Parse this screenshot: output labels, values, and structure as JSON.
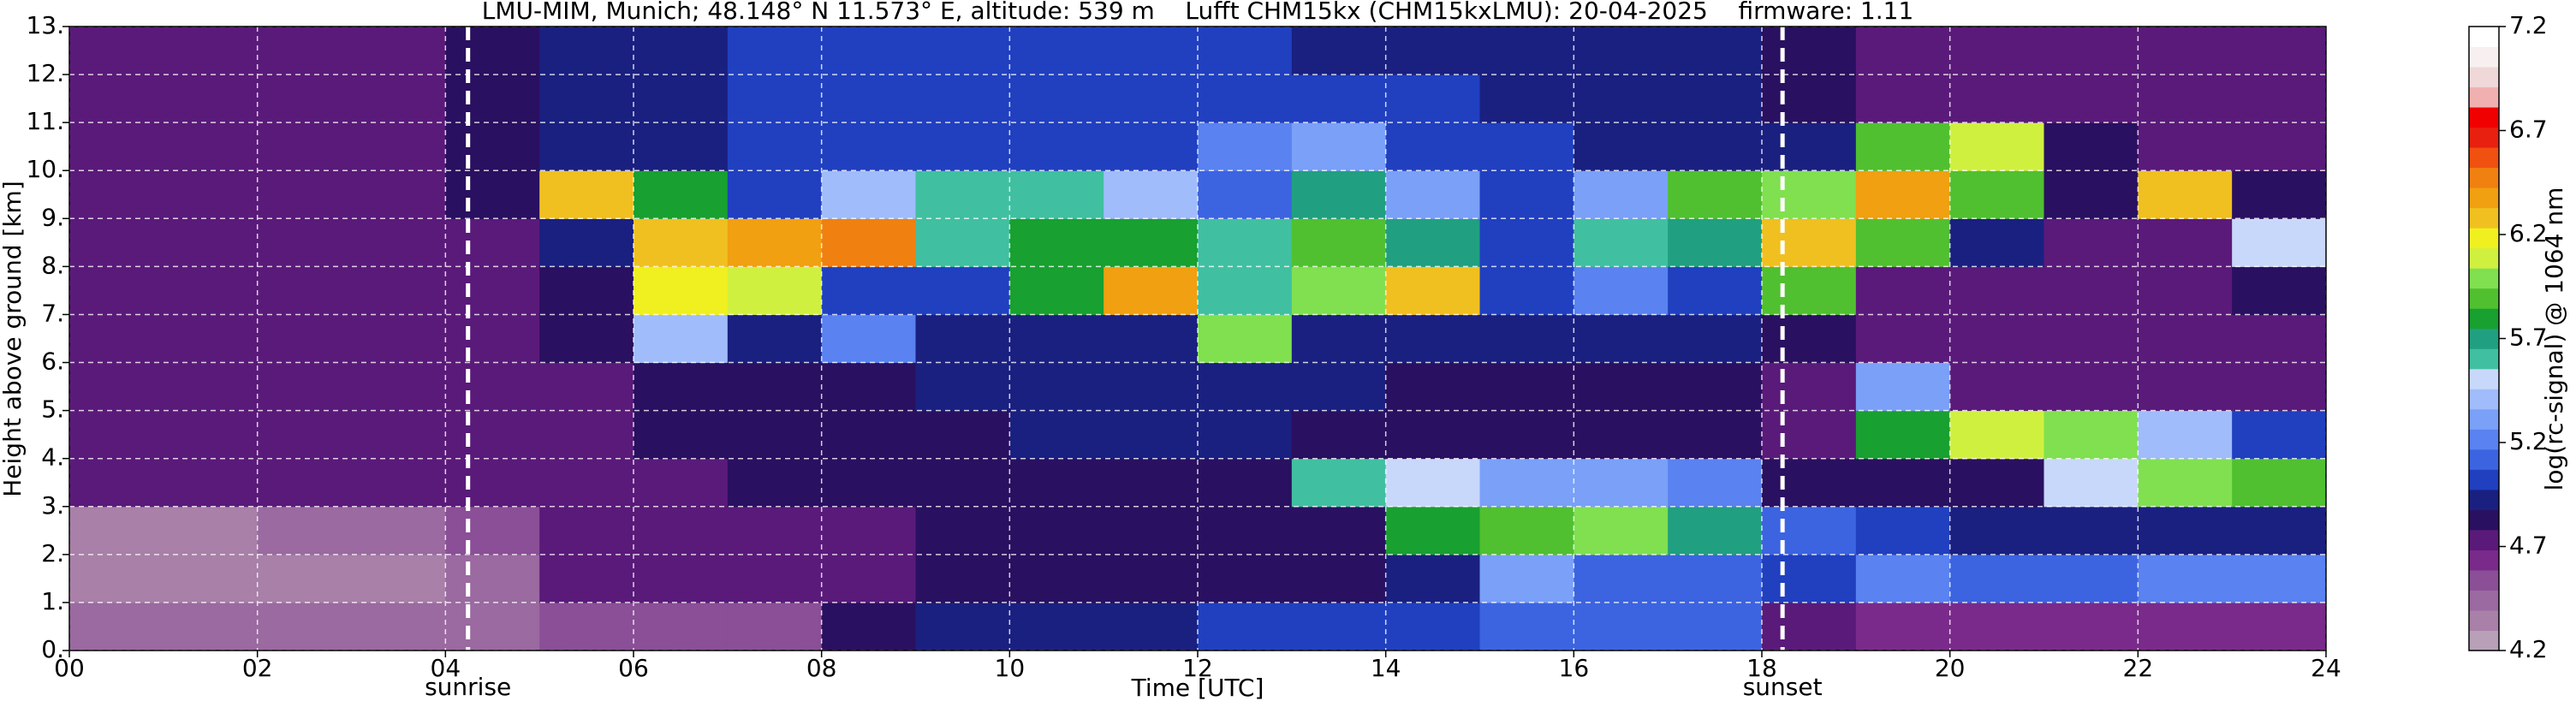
{
  "chart_data": {
    "type": "heatmap",
    "title": "LMU-MIM, Munich; 48.148° N 11.573° E, altitude: 539 m    Lufft CHM15kx (CHM15kxLMU): 20-04-2025    firmware: 1.11",
    "xlabel": "Time [UTC]",
    "ylabel": "Height above ground [km]",
    "colorbar_label": "log(rc-signal) @ 1064 nm",
    "xlim": [
      0,
      24
    ],
    "ylim": [
      0,
      13
    ],
    "zlim": [
      4.2,
      7.2
    ],
    "grid": true,
    "xticks": [
      {
        "value": 0,
        "label": "00"
      },
      {
        "value": 2,
        "label": "02"
      },
      {
        "value": 4,
        "label": "04"
      },
      {
        "value": 6,
        "label": "06"
      },
      {
        "value": 8,
        "label": "08"
      },
      10,
      12,
      14,
      16,
      18,
      20,
      22,
      24
    ],
    "yticks": [
      {
        "value": 0,
        "label": "0."
      },
      {
        "value": 1,
        "label": "1."
      },
      {
        "value": 2,
        "label": "2."
      },
      {
        "value": 3,
        "label": "3."
      },
      {
        "value": 4,
        "label": "4."
      },
      {
        "value": 5,
        "label": "5."
      },
      {
        "value": 6,
        "label": "6."
      },
      {
        "value": 7,
        "label": "7."
      },
      {
        "value": 8,
        "label": "8."
      },
      {
        "value": 9,
        "label": "9."
      },
      {
        "value": 10,
        "label": "10."
      },
      {
        "value": 11,
        "label": "11."
      },
      {
        "value": 12,
        "label": "12."
      },
      {
        "value": 13,
        "label": "13."
      }
    ],
    "zticks": [
      4.2,
      4.7,
      5.2,
      5.7,
      6.2,
      6.7,
      7.2
    ],
    "annotations": [
      {
        "label": "sunrise",
        "x": 4.24
      },
      {
        "label": "sunset",
        "x": 18.22
      }
    ],
    "colors": [
      "#b8a0b8",
      "#a880a8",
      "#9a6aa0",
      "#8a4f96",
      "#7a2a8a",
      "#5a1a7a",
      "#2a1060",
      "#1a2080",
      "#2040c0",
      "#3c64e0",
      "#5a82f0",
      "#7aa0f8",
      "#a0bcfa",
      "#c8d8fa",
      "#40c0a0",
      "#20a080",
      "#18a030",
      "#50c030",
      "#80e050",
      "#d0f040",
      "#f0f020",
      "#f0c020",
      "#f0a010",
      "#f08010",
      "#f05010",
      "#e82010",
      "#f00000",
      "#f0b0b0",
      "#f0d8d8",
      "#f8f0f0",
      "#ffffff"
    ],
    "xbins": [
      0,
      1,
      2,
      3,
      4,
      5,
      6,
      7,
      8,
      9,
      10,
      11,
      12,
      13,
      14,
      15,
      16,
      17,
      18,
      19,
      20,
      21,
      22,
      23,
      24
    ],
    "ybins": [
      0,
      1,
      2,
      3,
      4,
      5,
      6,
      7,
      8,
      9,
      10,
      11,
      12,
      13
    ],
    "z": [
      [
        4.4,
        4.4,
        4.4,
        4.4,
        4.45,
        4.5,
        4.5,
        4.5,
        4.8,
        4.9,
        4.9,
        4.9,
        5.0,
        5.0,
        5.0,
        5.1,
        5.1,
        5.1,
        4.7,
        4.6,
        4.6,
        4.6,
        4.6,
        4.6
      ],
      [
        4.35,
        4.35,
        4.35,
        4.35,
        4.4,
        4.7,
        4.7,
        4.7,
        4.75,
        4.8,
        4.8,
        4.8,
        4.8,
        4.85,
        4.9,
        5.3,
        5.1,
        5.1,
        5.0,
        5.2,
        5.1,
        5.1,
        5.2,
        5.2
      ],
      [
        4.35,
        4.35,
        4.4,
        4.4,
        4.5,
        4.7,
        4.7,
        4.75,
        4.75,
        4.8,
        4.8,
        4.8,
        4.8,
        4.85,
        5.8,
        5.9,
        6.0,
        5.7,
        5.1,
        5.0,
        4.95,
        4.95,
        4.95,
        4.95
      ],
      [
        4.7,
        4.7,
        4.7,
        4.7,
        4.7,
        4.75,
        4.75,
        4.8,
        4.8,
        4.85,
        4.85,
        4.85,
        4.85,
        5.6,
        5.5,
        5.3,
        5.3,
        5.2,
        4.8,
        4.8,
        4.8,
        5.5,
        6.0,
        5.9
      ],
      [
        4.7,
        4.7,
        4.7,
        4.7,
        4.7,
        4.75,
        4.8,
        4.8,
        4.85,
        4.85,
        4.9,
        4.9,
        4.9,
        4.85,
        4.85,
        4.8,
        4.8,
        4.8,
        4.75,
        5.8,
        6.1,
        6.0,
        5.4,
        5.0
      ],
      [
        4.7,
        4.7,
        4.7,
        4.7,
        4.7,
        4.75,
        4.8,
        4.85,
        4.85,
        4.9,
        4.9,
        4.9,
        4.9,
        4.9,
        4.85,
        4.85,
        4.85,
        4.85,
        4.75,
        5.3,
        4.75,
        4.7,
        4.7,
        4.7
      ],
      [
        4.7,
        4.7,
        4.7,
        4.7,
        4.7,
        4.8,
        5.4,
        4.9,
        5.2,
        4.95,
        4.95,
        4.95,
        6.0,
        4.95,
        4.9,
        4.9,
        4.9,
        4.9,
        4.8,
        4.7,
        4.7,
        4.7,
        4.7,
        4.7
      ],
      [
        4.7,
        4.7,
        4.7,
        4.7,
        4.75,
        4.85,
        6.2,
        6.1,
        5.0,
        5.0,
        5.8,
        6.4,
        5.6,
        6.0,
        6.3,
        5.0,
        5.2,
        5.0,
        5.9,
        4.75,
        4.7,
        4.7,
        4.7,
        4.8
      ],
      [
        4.7,
        4.7,
        4.7,
        4.7,
        4.75,
        4.9,
        6.3,
        6.4,
        6.5,
        5.6,
        5.8,
        5.8,
        5.6,
        5.9,
        5.7,
        5.0,
        5.6,
        5.7,
        6.3,
        5.9,
        4.9,
        4.75,
        4.75,
        5.5
      ],
      [
        4.7,
        4.7,
        4.7,
        4.7,
        4.8,
        6.3,
        5.8,
        5.0,
        5.4,
        5.6,
        5.6,
        5.4,
        5.1,
        5.7,
        5.3,
        5.0,
        5.3,
        5.9,
        6.0,
        6.4,
        5.9,
        4.8,
        6.3,
        4.8
      ],
      [
        4.7,
        4.7,
        4.7,
        4.7,
        4.8,
        4.9,
        4.95,
        5.0,
        5.0,
        5.0,
        5.0,
        5.0,
        5.2,
        5.3,
        5.0,
        5.0,
        4.95,
        4.9,
        4.9,
        5.9,
        6.1,
        4.8,
        4.75,
        4.7
      ],
      [
        4.7,
        4.7,
        4.7,
        4.7,
        4.8,
        4.9,
        4.95,
        5.0,
        5.0,
        5.05,
        5.05,
        5.0,
        5.0,
        5.0,
        5.0,
        4.95,
        4.95,
        4.9,
        4.85,
        4.75,
        4.7,
        4.7,
        4.7,
        4.7
      ],
      [
        4.7,
        4.7,
        4.7,
        4.7,
        4.8,
        4.9,
        4.95,
        5.0,
        5.0,
        5.05,
        5.05,
        5.0,
        5.0,
        4.95,
        4.95,
        4.95,
        4.9,
        4.9,
        4.85,
        4.75,
        4.7,
        4.7,
        4.7,
        4.7
      ]
    ]
  }
}
